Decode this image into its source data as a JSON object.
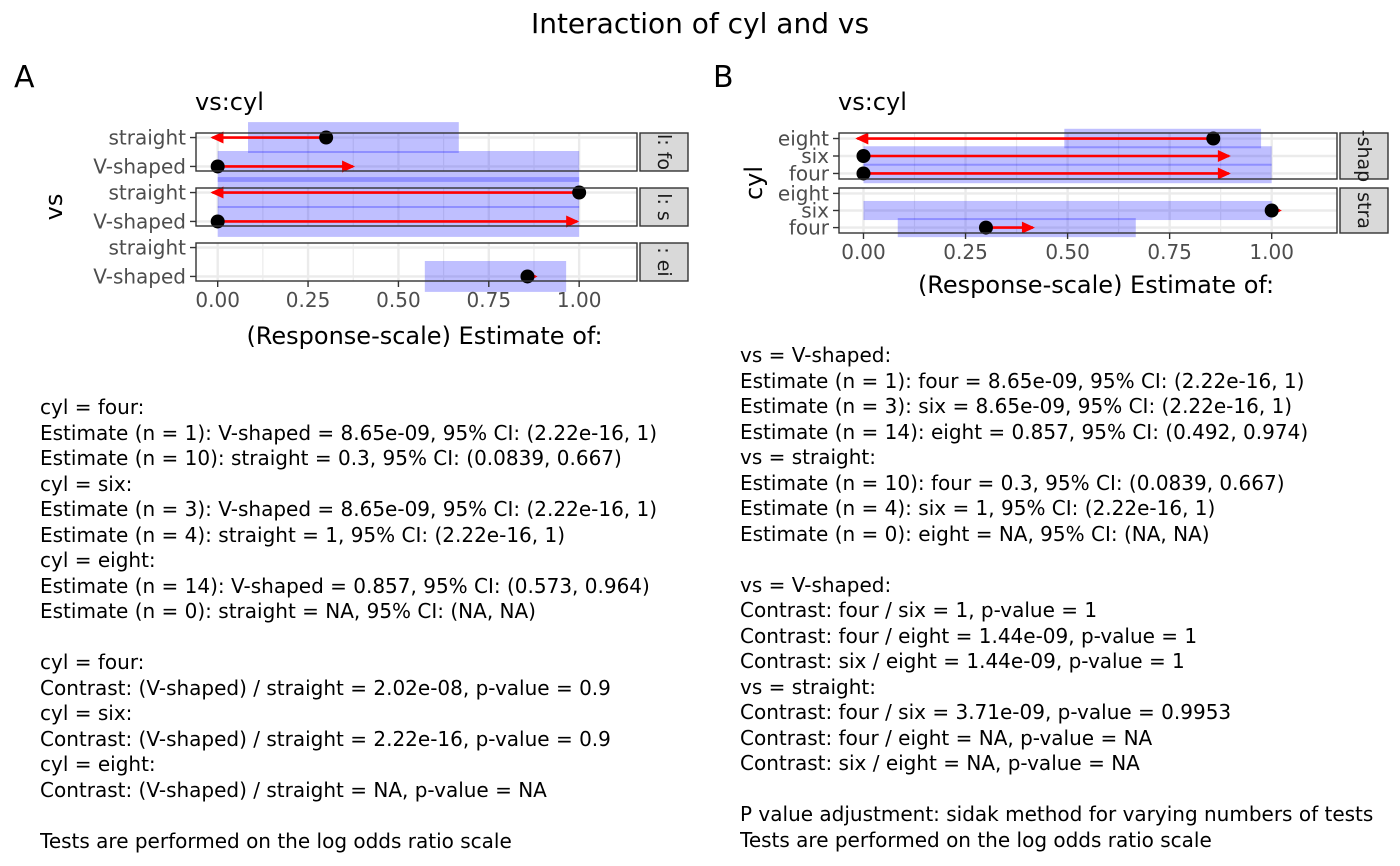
{
  "title": "Interaction of cyl and vs",
  "colors": {
    "ci": "#0000ff",
    "arrow": "#ff0000",
    "point": "#000000",
    "strip": "#d9d9d9",
    "grid": "#ebebeb"
  },
  "chart_data": [
    {
      "type": "scatter",
      "tag": "A",
      "title": "vs:cyl",
      "xlabel": "(Response-scale) Estimate of:",
      "ylabel": "vs",
      "xlim": [
        -0.06,
        1.16
      ],
      "xticks": [
        "0.00",
        "0.25",
        "0.50",
        "0.75",
        "1.00"
      ],
      "categories": [
        "V-shaped",
        "straight"
      ],
      "panels": [
        {
          "strip": "l: fo",
          "rows": [
            {
              "label": "straight",
              "estimate": 0.3,
              "ci": [
                0.0839,
                0.667
              ],
              "arrow_to": -0.02
            },
            {
              "label": "V-shaped",
              "estimate": 0.0,
              "ci": [
                0.0,
                1.0
              ],
              "arrow_to": 0.38
            }
          ]
        },
        {
          "strip": "l: s",
          "rows": [
            {
              "label": "straight",
              "estimate": 1.0,
              "ci": [
                0.0,
                1.0
              ],
              "arrow_to": -0.02
            },
            {
              "label": "V-shaped",
              "estimate": 0.0,
              "ci": [
                0.0,
                1.0
              ],
              "arrow_to": 1.0
            }
          ]
        },
        {
          "strip": ": ei",
          "rows": [
            {
              "label": "straight",
              "estimate": null,
              "ci": null,
              "arrow_to": null
            },
            {
              "label": "V-shaped",
              "estimate": 0.857,
              "ci": [
                0.573,
                0.964
              ],
              "arrow_to": 0.885
            }
          ]
        }
      ]
    },
    {
      "type": "scatter",
      "tag": "B",
      "title": "vs:cyl",
      "xlabel": "(Response-scale) Estimate of:",
      "ylabel": "cyl",
      "xlim": [
        -0.06,
        1.16
      ],
      "xticks": [
        "0.00",
        "0.25",
        "0.50",
        "0.75",
        "1.00"
      ],
      "categories": [
        "four",
        "six",
        "eight"
      ],
      "panels": [
        {
          "strip": "-shap",
          "rows": [
            {
              "label": "eight",
              "estimate": 0.857,
              "ci": [
                0.492,
                0.974
              ],
              "arrow_to": -0.02
            },
            {
              "label": "six",
              "estimate": 0.0,
              "ci": [
                0.0,
                1.0
              ],
              "arrow_to": 0.9
            },
            {
              "label": "four",
              "estimate": 0.0,
              "ci": [
                0.0,
                1.0
              ],
              "arrow_to": 0.9
            }
          ]
        },
        {
          "strip": "stra",
          "rows": [
            {
              "label": "eight",
              "estimate": null,
              "ci": null,
              "arrow_to": null
            },
            {
              "label": "six",
              "estimate": 1.0,
              "ci": [
                0.0,
                1.0
              ],
              "arrow_to": 1.025
            },
            {
              "label": "four",
              "estimate": 0.3,
              "ci": [
                0.0839,
                0.667
              ],
              "arrow_to": 0.42
            }
          ]
        }
      ]
    }
  ],
  "text_a": "cyl = four:\nEstimate (n = 1): V-shaped = 8.65e-09, 95% CI: (2.22e-16, 1)\nEstimate (n = 10): straight = 0.3, 95% CI: (0.0839, 0.667)\ncyl = six:\nEstimate (n = 3): V-shaped = 8.65e-09, 95% CI: (2.22e-16, 1)\nEstimate (n = 4): straight = 1, 95% CI: (2.22e-16, 1)\ncyl = eight:\nEstimate (n = 14): V-shaped = 0.857, 95% CI: (0.573, 0.964)\nEstimate (n = 0): straight = NA, 95% CI: (NA, NA)\n\ncyl = four:\nContrast: (V-shaped) / straight = 2.02e-08, p-value = 0.9\ncyl = six:\nContrast: (V-shaped) / straight = 2.22e-16, p-value = 0.9\ncyl = eight:\nContrast: (V-shaped) / straight = NA, p-value = NA\n\nTests are performed on the log odds ratio scale",
  "text_b": "vs = V-shaped:\nEstimate (n = 1): four = 8.65e-09, 95% CI: (2.22e-16, 1)\nEstimate (n = 3): six = 8.65e-09, 95% CI: (2.22e-16, 1)\nEstimate (n = 14): eight = 0.857, 95% CI: (0.492, 0.974)\nvs = straight:\nEstimate (n = 10): four = 0.3, 95% CI: (0.0839, 0.667)\nEstimate (n = 4): six = 1, 95% CI: (2.22e-16, 1)\nEstimate (n = 0): eight = NA, 95% CI: (NA, NA)\n\nvs = V-shaped:\nContrast: four / six = 1, p-value = 1\nContrast: four / eight = 1.44e-09, p-value = 1\nContrast: six / eight = 1.44e-09, p-value = 1\nvs = straight:\nContrast: four / six = 3.71e-09, p-value = 0.9953\nContrast: four / eight = NA, p-value = NA\nContrast: six / eight = NA, p-value = NA\n\nP value adjustment: sidak method for varying numbers of tests\nTests are performed on the log odds ratio scale"
}
